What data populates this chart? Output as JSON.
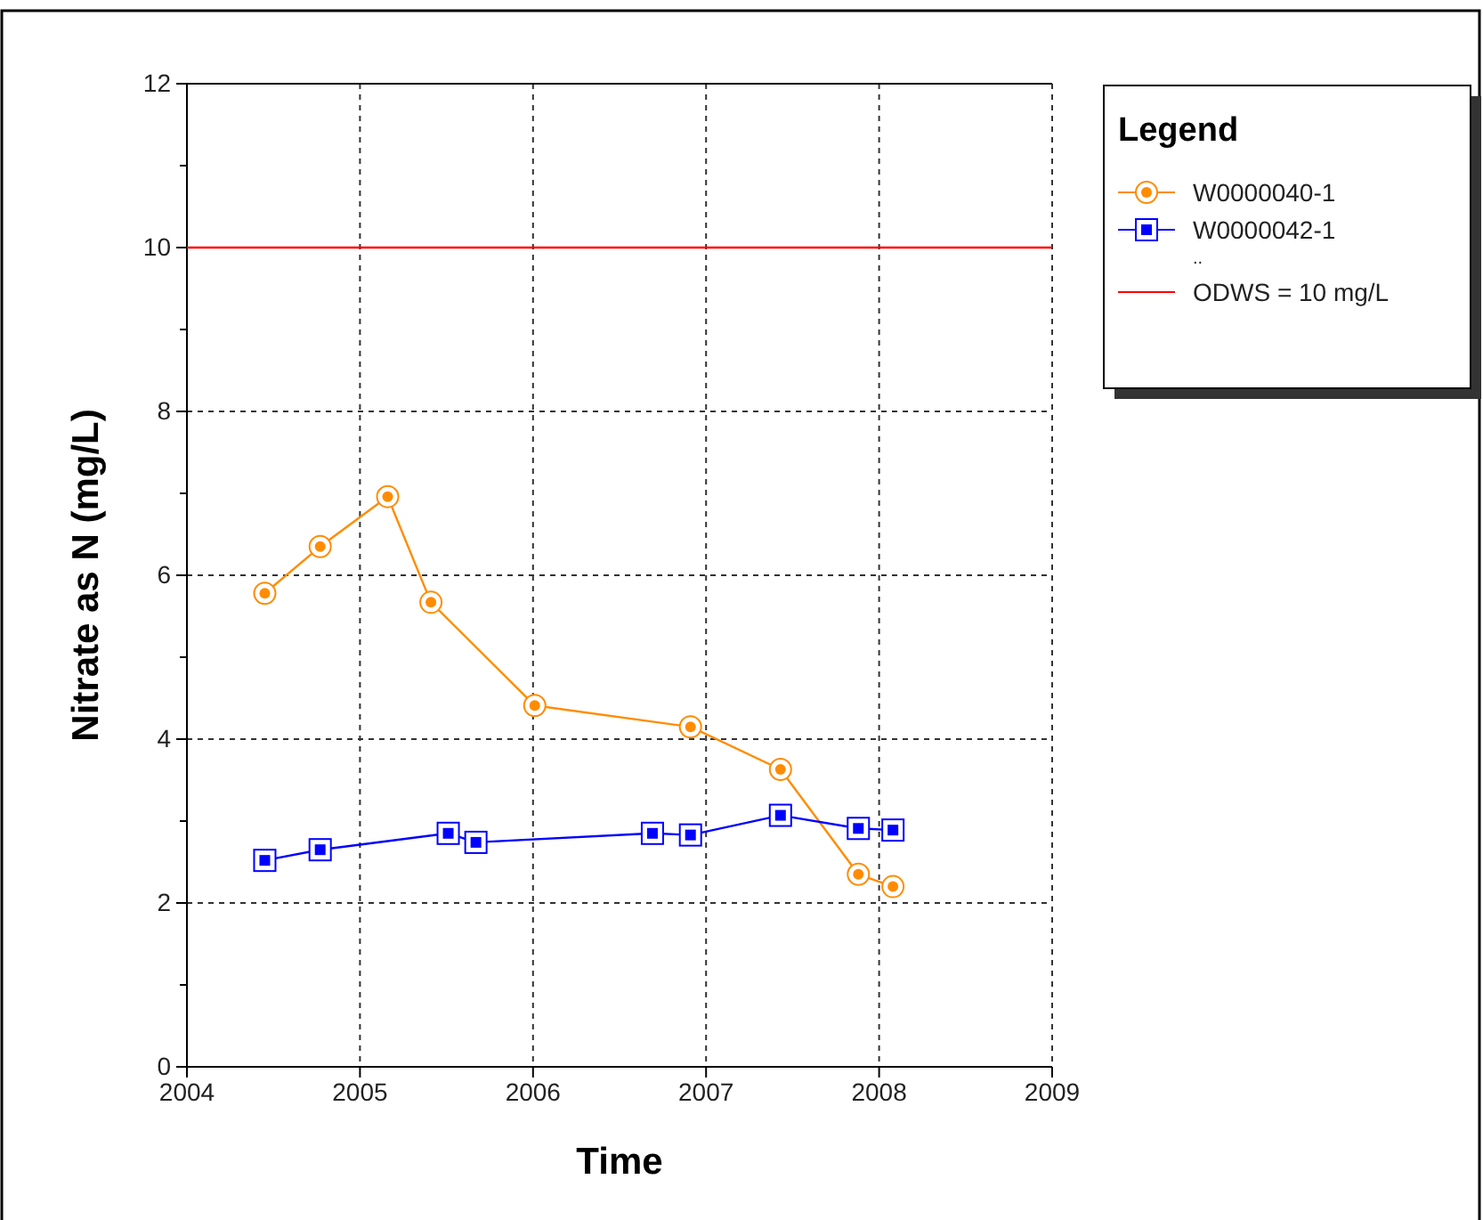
{
  "chart_data": {
    "type": "line",
    "xlabel": "Time",
    "ylabel": "Nitrate as N (mg/L)",
    "legend_title": "Legend",
    "legend": "top right",
    "grid": true,
    "line_style": "solid",
    "xlim": [
      2004,
      2009
    ],
    "xticks": [
      2004,
      2005,
      2006,
      2007,
      2008,
      2009
    ],
    "ylim": [
      0,
      12
    ],
    "yticks": [
      0,
      {
        "value": 1,
        "label": null
      },
      2,
      {
        "value": 3,
        "label": null
      },
      4,
      {
        "value": 5,
        "label": null
      },
      6,
      {
        "value": 7,
        "label": null
      },
      8,
      {
        "value": 9,
        "label": null
      },
      10,
      {
        "value": 11,
        "label": null
      },
      12
    ],
    "series": [
      {
        "name": "W0000040-1",
        "color": "#ff8c00",
        "marker": "circle",
        "x": [
          2004.45,
          2004.77,
          2005.16,
          2005.41,
          2006.01,
          2006.91,
          2007.43,
          2007.88,
          2008.08
        ],
        "values": [
          5.78,
          6.35,
          6.96,
          5.67,
          4.41,
          4.15,
          3.63,
          2.35,
          2.2
        ]
      },
      {
        "name": "W0000042-1",
        "color": "#0000ff",
        "marker": "square",
        "x": [
          2004.45,
          2004.77,
          2005.51,
          2005.67,
          2006.69,
          2006.91,
          2007.43,
          2007.88,
          2008.08
        ],
        "values": [
          2.52,
          2.65,
          2.85,
          2.74,
          2.85,
          2.83,
          3.07,
          2.91,
          2.89
        ]
      }
    ],
    "ref_lines": [
      {
        "axis": "y",
        "value": 10,
        "label": "ODWS = 10 mg/L",
        "color": "#ff0000"
      }
    ],
    "annotations": [
      ".."
    ]
  }
}
